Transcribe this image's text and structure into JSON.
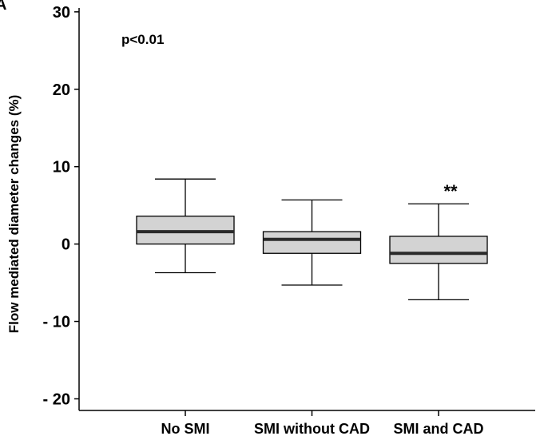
{
  "chart_data": {
    "type": "box",
    "panel_label": "A",
    "ylabel": "Flow mediated diameter changes  (%)",
    "xlabel": "",
    "ylim": [
      -21.5,
      30.5
    ],
    "yticks": [
      {
        "value": 30,
        "label": "30"
      },
      {
        "value": 20,
        "label": "20"
      },
      {
        "value": 10,
        "label": "10"
      },
      {
        "value": 0,
        "label": "0"
      },
      {
        "value": -10,
        "label": "- 10"
      },
      {
        "value": -20,
        "label": "- 20"
      }
    ],
    "grid": false,
    "annotation": "p<0.01",
    "box_fill": "#d3d3d3",
    "median_color": "#2a2a2a",
    "categories": [
      "No SMI",
      "SMI without CAD",
      "SMI and CAD"
    ],
    "boxes": [
      {
        "whisker_low": -3.7,
        "q1": 0.0,
        "median": 1.6,
        "q3": 3.6,
        "whisker_high": 8.4,
        "marker": ""
      },
      {
        "whisker_low": -5.3,
        "q1": -1.2,
        "median": 0.6,
        "q3": 1.6,
        "whisker_high": 5.7,
        "marker": ""
      },
      {
        "whisker_low": -7.2,
        "q1": -2.5,
        "median": -1.2,
        "q3": 1.0,
        "whisker_high": 5.2,
        "marker": "**"
      }
    ]
  }
}
